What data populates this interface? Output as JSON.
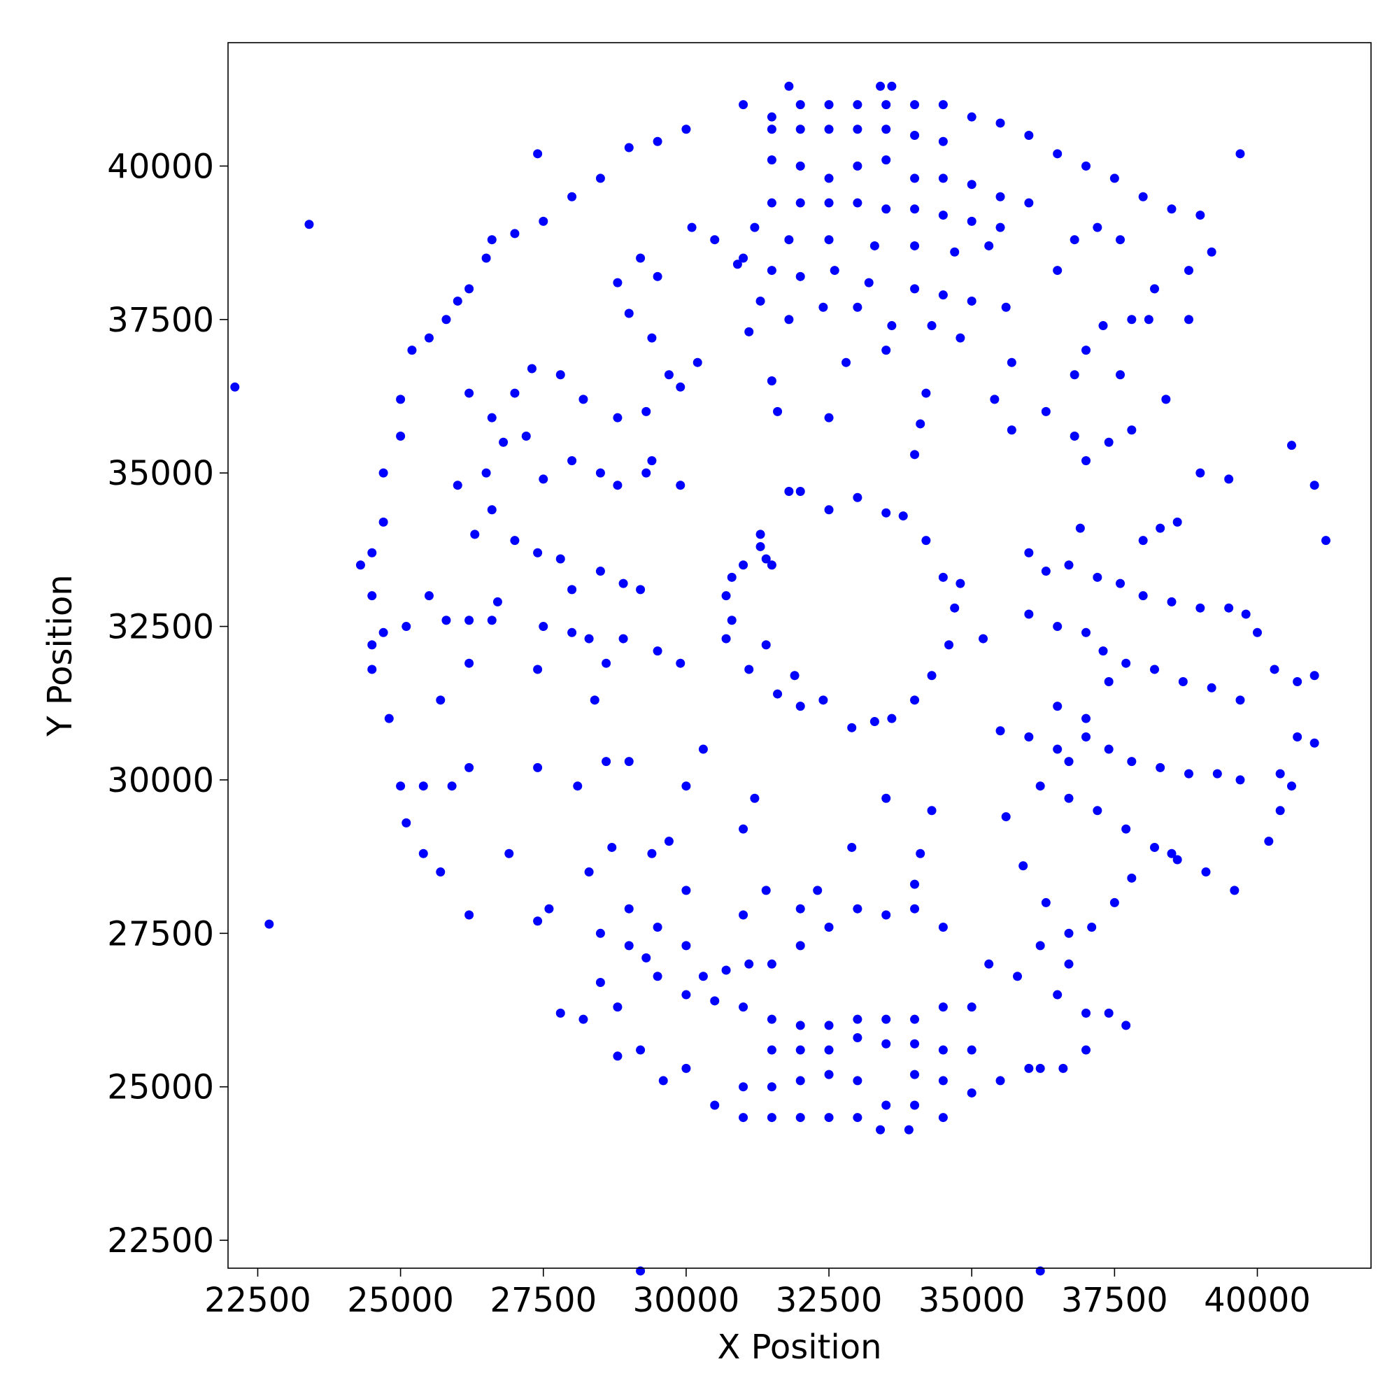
{
  "chart_data": {
    "type": "scatter",
    "xlabel": "X Position",
    "ylabel": "Y Position",
    "color": "#0000ff",
    "xlim": [
      21980,
      41990
    ],
    "ylim": [
      22045,
      42010
    ],
    "xticks": [
      22500,
      25000,
      27500,
      30000,
      32500,
      35000,
      37500,
      40000
    ],
    "yticks": [
      22500,
      25000,
      27500,
      30000,
      32500,
      35000,
      37500,
      40000
    ],
    "x": [
      22100,
      22700,
      23400,
      29200,
      36200,
      39700,
      41200,
      41000,
      40600,
      27400,
      31300,
      31400,
      31300,
      31500,
      31800,
      32000,
      32500,
      33000,
      33500,
      33800,
      34200,
      34500,
      34700,
      34600,
      34300,
      34000,
      33600,
      33300,
      32900,
      32400,
      31900,
      31400,
      30800,
      30700,
      30800,
      31000,
      30700,
      31100,
      31600,
      32000,
      31000,
      31500,
      32000,
      32500,
      33000,
      33500,
      34000,
      34500,
      31800,
      33400,
      33600,
      35000,
      35500,
      36000,
      36500,
      37000,
      37500,
      38000,
      38500,
      39000,
      30000,
      29500,
      29000,
      28500,
      28000,
      27500,
      27000,
      26600,
      26500,
      26200,
      26000,
      25800,
      25500,
      25200,
      31500,
      32000,
      32500,
      33000,
      33500,
      34000,
      34500,
      31500,
      32000,
      32500,
      33000,
      33500,
      34000,
      34500,
      35000,
      35500,
      36000,
      31500,
      32000,
      32500,
      33000,
      33500,
      34000,
      34500,
      35000,
      35500,
      31200,
      31800,
      32500,
      33300,
      34000,
      34700,
      35300,
      31000,
      31500,
      32000,
      32600,
      33200,
      34000,
      34500,
      35000,
      35600,
      31300,
      31800,
      32400,
      33000,
      33600,
      34300,
      34800,
      31100,
      31500,
      31600,
      32500,
      32800,
      33500,
      34200,
      34100,
      34000,
      30900,
      30500,
      30100,
      29500,
      29200,
      28800,
      29000,
      29400,
      29700,
      29900,
      30200,
      29300,
      28800,
      28200,
      27800,
      27300,
      27000,
      26600,
      26200,
      36500,
      36800,
      37200,
      37600,
      38200,
      38800,
      37000,
      37300,
      37600,
      37800,
      38100,
      38400,
      38800,
      39200,
      25000,
      25000,
      24700,
      24700,
      24500,
      24300,
      24500,
      24500,
      24700,
      24500,
      24800,
      25100,
      25000,
      25400,
      25900,
      25100,
      25400,
      25700,
      25500,
      25800,
      26200,
      26600,
      26300,
      26000,
      26500,
      26800,
      27200,
      27500,
      28000,
      28500,
      28800,
      29300,
      29900,
      29400,
      26600,
      27000,
      27400,
      27800,
      28000,
      28300,
      28600,
      28500,
      28900,
      29200,
      26700,
      27500,
      28000,
      28900,
      29500,
      29900,
      26200,
      27400,
      28400,
      26200,
      27400,
      28100,
      28600,
      29000,
      26200,
      26900,
      27400,
      27600,
      28300,
      28700,
      29400,
      29700,
      30000,
      30300,
      25700,
      36000,
      36300,
      36700,
      37200,
      37600,
      38000,
      38500,
      39000,
      39500,
      39800,
      40000,
      36000,
      36500,
      37000,
      37300,
      37700,
      38200,
      38700,
      39200,
      39700,
      40300,
      40700,
      41000,
      40700,
      41000,
      40400,
      40600,
      40400,
      40200,
      35500,
      36000,
      36500,
      36700,
      37000,
      37400,
      37800,
      38300,
      38800,
      39300,
      39700,
      36200,
      36700,
      37200,
      37700,
      38200,
      38600,
      39100,
      39600,
      35600,
      35900,
      36300,
      36700,
      37100,
      37500,
      37800,
      38500,
      36500,
      37000,
      37400,
      35200,
      34800,
      38300,
      38600,
      39000,
      39500,
      37000,
      37400,
      37800,
      38000,
      36900,
      36800,
      35700,
      35400,
      35700,
      36300,
      36800,
      30500,
      31000,
      31500,
      32000,
      32500,
      33000,
      33500,
      34000,
      34500,
      33400,
      33900,
      35000,
      35500,
      36000,
      36200,
      31000,
      31500,
      32000,
      32500,
      33000,
      34000,
      34500,
      31500,
      32000,
      32500,
      33000,
      33500,
      34000,
      34500,
      35000,
      31500,
      32000,
      32500,
      33000,
      33500,
      34000,
      34500,
      35000,
      30500,
      31000,
      30000,
      29500,
      29300,
      29000,
      28500,
      30300,
      30700,
      31100,
      31500,
      32000,
      32500,
      33000,
      33500,
      34000,
      34500,
      30000,
      29500,
      29000,
      31000,
      31400,
      32300,
      32900,
      34000,
      34100,
      34300,
      33500,
      31000,
      31200,
      30000,
      28500,
      28800,
      28200,
      27800,
      28800,
      29200,
      29600,
      30000,
      37000,
      37400,
      37700,
      36500,
      36700,
      37000,
      36200,
      32000,
      35800,
      36600,
      35300
    ],
    "values": [
      36400,
      27650,
      39050,
      22000,
      22000,
      40200,
      33900,
      34800,
      35450,
      40200,
      33800,
      33600,
      34000,
      33500,
      34700,
      34700,
      34400,
      34600,
      34350,
      34300,
      33900,
      33300,
      32800,
      32200,
      31700,
      31300,
      31000,
      30950,
      30850,
      31300,
      31700,
      32200,
      32600,
      33000,
      33300,
      33500,
      32300,
      31800,
      31400,
      31200,
      41000,
      40800,
      41000,
      41000,
      41000,
      41000,
      41000,
      41000,
      41300,
      41300,
      41300,
      40800,
      40700,
      40500,
      40200,
      40000,
      39800,
      39500,
      39300,
      39200,
      40600,
      40400,
      40300,
      39800,
      39500,
      39100,
      38900,
      38800,
      38500,
      38000,
      37800,
      37500,
      37200,
      37000,
      40600,
      40600,
      40600,
      40600,
      40600,
      40500,
      40400,
      40100,
      40000,
      39800,
      40000,
      40100,
      39800,
      39800,
      39700,
      39500,
      39400,
      39400,
      39400,
      39400,
      39400,
      39300,
      39300,
      39200,
      39100,
      39000,
      39000,
      38800,
      38800,
      38700,
      38700,
      38600,
      38700,
      38500,
      38300,
      38200,
      38300,
      38100,
      38000,
      37900,
      37800,
      37700,
      37800,
      37500,
      37700,
      37700,
      37400,
      37400,
      37200,
      37300,
      36500,
      36000,
      35900,
      36800,
      37000,
      36300,
      35800,
      35300,
      38400,
      38800,
      39000,
      38200,
      38500,
      38100,
      37600,
      37200,
      36600,
      36400,
      36800,
      36000,
      35900,
      36200,
      36600,
      36700,
      36300,
      35900,
      36300,
      38300,
      38800,
      39000,
      38800,
      38000,
      38300,
      37000,
      37400,
      36600,
      37500,
      37500,
      36200,
      37500,
      38600,
      35600,
      36200,
      35000,
      34200,
      33700,
      33500,
      33000,
      32200,
      32400,
      31800,
      31000,
      32500,
      29900,
      29900,
      29900,
      29300,
      28800,
      28500,
      33000,
      32600,
      32600,
      32600,
      34000,
      34800,
      35000,
      35500,
      35600,
      34900,
      35200,
      35000,
      34800,
      35000,
      34800,
      35200,
      34400,
      33900,
      33700,
      33600,
      33100,
      32300,
      31900,
      33400,
      33200,
      33100,
      32900,
      32500,
      32400,
      32300,
      32100,
      31900,
      31900,
      31800,
      31300,
      30200,
      30200,
      29900,
      30300,
      30300,
      27800,
      28800,
      27700,
      27900,
      28500,
      28900,
      28800,
      29000,
      29900,
      30500,
      31300,
      33700,
      33400,
      33500,
      33300,
      33200,
      33000,
      32900,
      32800,
      32800,
      32700,
      32400,
      32700,
      32500,
      32400,
      32100,
      31900,
      31800,
      31600,
      31500,
      31300,
      31800,
      31600,
      31700,
      30700,
      30600,
      30100,
      29900,
      29500,
      29000,
      30800,
      30700,
      30500,
      30300,
      30700,
      30500,
      30300,
      30200,
      30100,
      30100,
      30000,
      29900,
      29700,
      29500,
      29200,
      28900,
      28700,
      28500,
      28200,
      29400,
      28600,
      28000,
      27500,
      27600,
      28000,
      28400,
      28800,
      31200,
      31000,
      31600,
      32300,
      33200,
      34100,
      34200,
      35000,
      34900,
      35200,
      35500,
      35700,
      33900,
      34100,
      35600,
      35700,
      36200,
      36800,
      36000,
      36600,
      24700,
      24500,
      24500,
      24500,
      24500,
      24500,
      24700,
      24700,
      24500,
      24300,
      24300,
      24900,
      25100,
      25300,
      25300,
      25000,
      25000,
      25100,
      25200,
      25100,
      25200,
      25100,
      25600,
      25600,
      25600,
      25800,
      25700,
      25700,
      25600,
      25600,
      26100,
      26000,
      26000,
      26100,
      26100,
      26100,
      26300,
      26300,
      26400,
      26300,
      26500,
      26800,
      27100,
      27300,
      27500,
      26800,
      26900,
      27000,
      27000,
      27300,
      27600,
      27900,
      27800,
      27900,
      27600,
      27300,
      27600,
      27900,
      27800,
      28200,
      28200,
      28900,
      28300,
      28800,
      29500,
      29700,
      29200,
      29700,
      28200,
      26700,
      26300,
      26100,
      26200,
      25500,
      25600,
      25100,
      25300,
      26200,
      26200,
      26000,
      26500,
      27000,
      25600,
      27300,
      27900,
      26800,
      25300,
      27000
    ]
  }
}
